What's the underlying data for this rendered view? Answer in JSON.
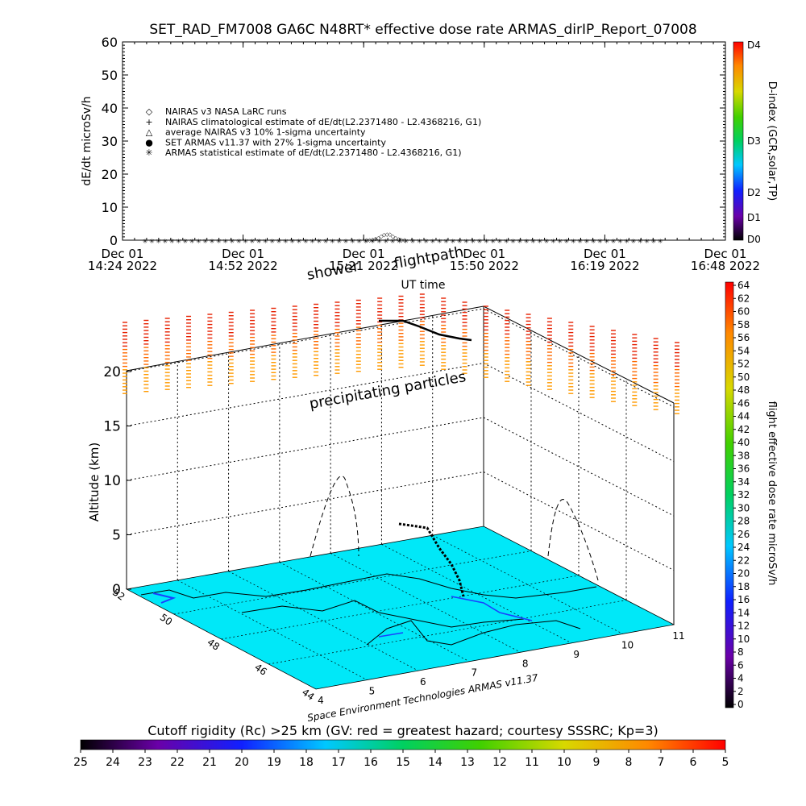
{
  "header": {
    "title": "SET_RAD_FM7008  GA6C N48RT* effective dose rate ARMAS_dirIP_Report_07008"
  },
  "chart_data": [
    {
      "type": "scatter",
      "ylabel": "dE/dt microSv/h",
      "xlabel": "UT time",
      "ylim": [
        0,
        60
      ],
      "yticks": [
        "0",
        "10",
        "20",
        "30",
        "40",
        "50",
        "60"
      ],
      "xticks": [
        {
          "date": "Dec 01",
          "time": "14:24 2022"
        },
        {
          "date": "Dec 01",
          "time": "14:52 2022"
        },
        {
          "date": "Dec 01",
          "time": "15:21 2022"
        },
        {
          "date": "Dec 01",
          "time": "15:50 2022"
        },
        {
          "date": "Dec 01",
          "time": "16:19 2022"
        },
        {
          "date": "Dec 01",
          "time": "16:48 2022"
        }
      ],
      "legend": [
        {
          "symbol": "◇",
          "label": "NAIRAS v3 NASA LaRC runs"
        },
        {
          "symbol": "+",
          "label": "NAIRAS climatological estimate of dE/dt(L2.2371480 - L2.4368216, G1)"
        },
        {
          "symbol": "△",
          "label": "average NAIRAS v3 10% 1-sigma uncertainty"
        },
        {
          "symbol": "●",
          "label": "SET ARMAS v11.37 with 27% 1-sigma uncertainty",
          "color": "#1a3cff"
        },
        {
          "symbol": "✳",
          "label": "ARMAS statistical estimate of dE/dt(L2.2371480 - L2.4368216, G1)"
        }
      ],
      "legend_placement": "left",
      "series": [
        {
          "name": "NAIRAS v3 NASA LaRC runs",
          "marker": "diamond",
          "x_start": "14:24",
          "x_end": "16:48",
          "values": [
            0.3,
            0.3,
            0.4,
            0.6,
            0.9,
            1.3,
            1.8,
            2.0,
            1.9,
            1.4,
            0.9,
            0.5,
            0.3,
            0.2
          ]
        },
        {
          "name": "ARMAS statistical estimate",
          "marker": "star",
          "values_note": ""
        }
      ]
    },
    {
      "type": "scatter",
      "ylabel": "Altitude (km)",
      "zticks": [
        "0",
        "5",
        "10",
        "15",
        "20"
      ],
      "lat_ticks": [
        "52",
        "50",
        "48",
        "46",
        "44"
      ],
      "lon_ticks": [
        "4",
        "5",
        "6",
        "7",
        "8",
        "9",
        "10",
        "11"
      ],
      "annotations": {
        "shower": "shower",
        "flightpath": "flightpath",
        "precip": "precipitating particles",
        "credit": "Space Environment Technologies ARMAS v11.37"
      },
      "surface_color": "#00e8f8"
    }
  ],
  "colorbars": {
    "dindex": {
      "label": "D-index (GCR,solar,TP)",
      "ticks": [
        "D4",
        "D3",
        "D2",
        "D1",
        "D0"
      ]
    },
    "dose": {
      "label": "flight effective dose rate microSv/h",
      "ticks": [
        "64",
        "62",
        "60",
        "58",
        "56",
        "54",
        "52",
        "50",
        "48",
        "46",
        "44",
        "42",
        "40",
        "38",
        "36",
        "34",
        "32",
        "30",
        "28",
        "26",
        "24",
        "22",
        "20",
        "18",
        "16",
        "14",
        "12",
        "10",
        "8",
        "6",
        "4",
        "2",
        "0"
      ]
    },
    "rigidity": {
      "title": "Cutoff rigidity (Rc) >25 km (GV: red = greatest hazard; courtesy SSSRC; Kp=3)",
      "ticks": [
        "25",
        "24",
        "23",
        "22",
        "21",
        "20",
        "19",
        "18",
        "17",
        "16",
        "15",
        "14",
        "13",
        "12",
        "11",
        "10",
        "9",
        "8",
        "7",
        "6",
        "5"
      ]
    }
  }
}
